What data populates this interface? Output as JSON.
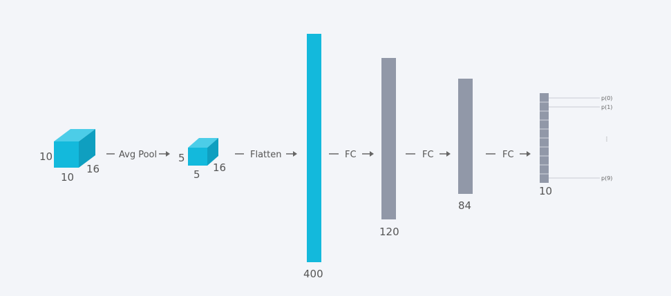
{
  "diagram": {
    "colors": {
      "background": "#f3f5f9",
      "accent": "#13b9dc",
      "accent_dark": "#0f9fc0",
      "gray": "#9198a8",
      "text": "#555555",
      "line": "#c8cbd2"
    },
    "block1": {
      "height_label": "10",
      "width_label": "10",
      "depth_label": "16"
    },
    "arrow1": {
      "label": "Avg Pool"
    },
    "block2": {
      "height_label": "5",
      "width_label": "5",
      "depth_label": "16"
    },
    "arrow2": {
      "label": "Flatten"
    },
    "layer1": {
      "size_label": "400"
    },
    "arrow3": {
      "label": "FC"
    },
    "layer2": {
      "size_label": "120"
    },
    "arrow4": {
      "label": "FC"
    },
    "layer3": {
      "size_label": "84"
    },
    "arrow5": {
      "label": "FC"
    },
    "output": {
      "size_label": "10",
      "units": 10,
      "labels": [
        "p(0)",
        "p(1)",
        "⋮",
        "p(9)"
      ]
    }
  }
}
